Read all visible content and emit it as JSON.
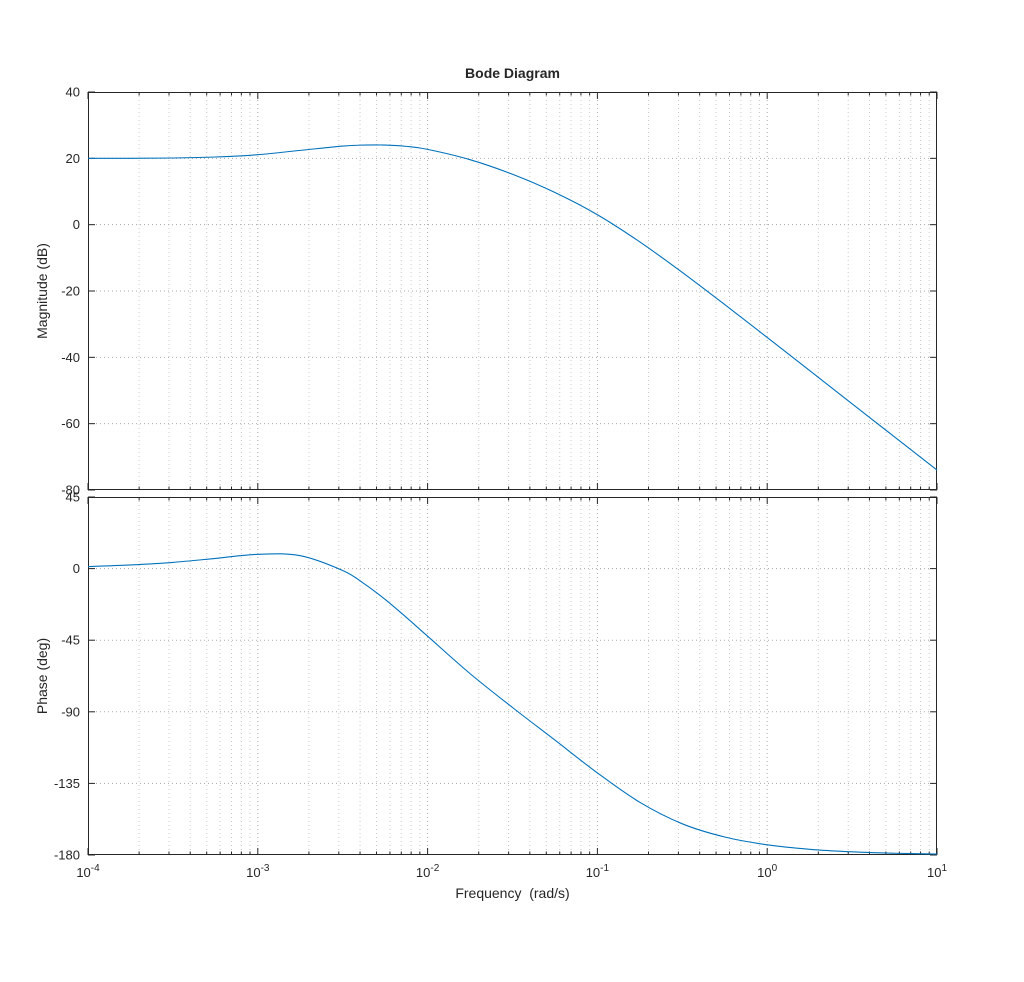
{
  "figure": {
    "title": "Bode Diagram",
    "xlabel": "Frequency  (rad/s)",
    "colors": {
      "background": "#ffffff",
      "axes": "#262626",
      "grid_major": "#a9a9a9",
      "grid_minor": "#c9c9c9",
      "line": "#0072BD"
    }
  },
  "chart_data": [
    {
      "type": "line",
      "subplot": "mag",
      "title": "Bode Diagram",
      "ylabel": "Magnitude (dB)",
      "x_scale": "log10",
      "x_unit": "rad/s",
      "xlim_exp": [
        -4,
        1
      ],
      "ylim": [
        -80,
        40
      ],
      "yticks": [
        40,
        20,
        0,
        -20,
        -40,
        -60,
        -80
      ],
      "xticks_exp": [
        -4,
        -3,
        -2,
        -1,
        0,
        1
      ],
      "show_xtick_labels": false,
      "grid": true,
      "legend": "none",
      "series": [
        {
          "name": "magnitude",
          "x_log10": [
            -4,
            -3.75,
            -3.5,
            -3.25,
            -3,
            -2.75,
            -2.5,
            -2.375,
            -2.25,
            -2.125,
            -2,
            -1.75,
            -1.5,
            -1.25,
            -1,
            -0.75,
            -0.5,
            -0.25,
            0,
            0.25,
            0.5,
            0.75,
            1
          ],
          "y": [
            20.0,
            20.0,
            20.1,
            20.4,
            21.1,
            22.4,
            23.7,
            24.0,
            24.0,
            23.6,
            22.7,
            19.6,
            15.2,
            9.7,
            3.0,
            -5.2,
            -14.4,
            -24.1,
            -34.0,
            -44.0,
            -54.0,
            -64.0,
            -74.0
          ]
        }
      ]
    },
    {
      "type": "line",
      "subplot": "phase",
      "ylabel": "Phase (deg)",
      "x_scale": "log10",
      "x_unit": "rad/s",
      "xlim_exp": [
        -4,
        1
      ],
      "ylim": [
        -180,
        45
      ],
      "yticks": [
        45,
        0,
        -45,
        -90,
        -135,
        -180
      ],
      "xticks_exp": [
        -4,
        -3,
        -2,
        -1,
        0,
        1
      ],
      "show_xtick_labels": true,
      "grid": true,
      "legend": "none",
      "series": [
        {
          "name": "phase",
          "x_log10": [
            -4,
            -3.75,
            -3.5,
            -3.25,
            -3,
            -2.75,
            -2.5,
            -2.375,
            -2.25,
            -2.125,
            -2,
            -1.75,
            -1.5,
            -1.25,
            -1,
            -0.75,
            -0.5,
            -0.25,
            0,
            0.25,
            0.5,
            0.75,
            1
          ],
          "y": [
            1.3,
            2.3,
            3.9,
            6.4,
            9.0,
            8.1,
            -1.2,
            -9.4,
            -19.4,
            -30.7,
            -42.5,
            -66.0,
            -87.3,
            -107.8,
            -128.4,
            -146.9,
            -160.4,
            -168.7,
            -173.6,
            -176.4,
            -178.0,
            -178.9,
            -179.4
          ]
        }
      ]
    }
  ]
}
